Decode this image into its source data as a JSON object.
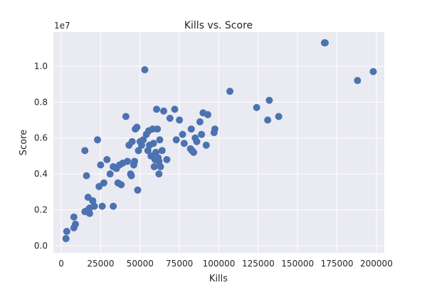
{
  "chart_data": {
    "type": "scatter",
    "title": "Kills vs. Score",
    "xlabel": "Kills",
    "ylabel": "Score",
    "y_offset_label": "1e7",
    "xlim": [
      -5000,
      205000
    ],
    "ylim": [
      -0.4,
      11.9
    ],
    "y_scale_factor": 10000000,
    "x_ticks": [
      0,
      25000,
      50000,
      75000,
      100000,
      125000,
      150000,
      175000,
      200000
    ],
    "x_tick_labels": [
      "0",
      "25000",
      "50000",
      "75000",
      "100000",
      "125000",
      "150000",
      "175000",
      "200000"
    ],
    "y_ticks": [
      0.0,
      2.0,
      4.0,
      6.0,
      8.0,
      10.0
    ],
    "y_tick_labels": [
      "0.0",
      "0.2",
      "0.4",
      "0.6",
      "0.8",
      "1.0"
    ],
    "grid": true,
    "background_color": "#eaeaf2",
    "point_color": "#4c72b0",
    "x": [
      3000,
      3500,
      8000,
      8000,
      9000,
      15000,
      15000,
      16000,
      17000,
      17000,
      18000,
      18000,
      20000,
      21000,
      23000,
      24000,
      25000,
      26000,
      27000,
      29000,
      31000,
      33000,
      33000,
      35000,
      36000,
      37000,
      38000,
      39000,
      41000,
      42000,
      43000,
      44000,
      44500,
      45000,
      46000,
      46500,
      47000,
      48000,
      48500,
      49000,
      50000,
      51000,
      52000,
      53000,
      54000,
      55000,
      55500,
      56000,
      57000,
      58000,
      58500,
      59000,
      59500,
      60000,
      60500,
      61000,
      61500,
      62000,
      62000,
      62500,
      63000,
      64000,
      65000,
      67000,
      69000,
      72000,
      73000,
      75000,
      77000,
      78000,
      82000,
      82500,
      83000,
      84000,
      85000,
      86000,
      88000,
      89000,
      90000,
      92000,
      93000,
      97000,
      97500,
      107000,
      124000,
      131000,
      132000,
      138000,
      167000,
      167500,
      188000,
      198000
    ],
    "y": [
      0.4,
      0.8,
      1.0,
      1.6,
      1.2,
      1.9,
      5.3,
      3.9,
      2.0,
      2.7,
      1.8,
      2.1,
      2.5,
      2.2,
      5.9,
      3.3,
      4.5,
      2.2,
      3.5,
      4.8,
      4.0,
      2.2,
      4.4,
      4.3,
      3.5,
      4.5,
      3.4,
      4.6,
      7.2,
      4.7,
      5.6,
      4.0,
      3.9,
      5.8,
      4.5,
      4.7,
      6.5,
      6.6,
      3.1,
      5.3,
      5.8,
      5.6,
      5.9,
      9.8,
      6.2,
      5.3,
      6.4,
      5.6,
      5.0,
      6.5,
      5.7,
      4.4,
      4.8,
      5.2,
      7.6,
      6.5,
      4.9,
      4.7,
      4.0,
      5.9,
      4.4,
      5.3,
      7.5,
      4.8,
      7.1,
      7.6,
      5.9,
      7.0,
      6.2,
      5.7,
      5.4,
      6.5,
      5.3,
      5.2,
      6.0,
      5.8,
      6.9,
      6.2,
      7.4,
      5.6,
      7.3,
      6.3,
      6.5,
      8.6,
      7.7,
      7.0,
      8.1,
      7.2,
      11.3,
      11.3,
      9.2,
      9.7
    ]
  }
}
